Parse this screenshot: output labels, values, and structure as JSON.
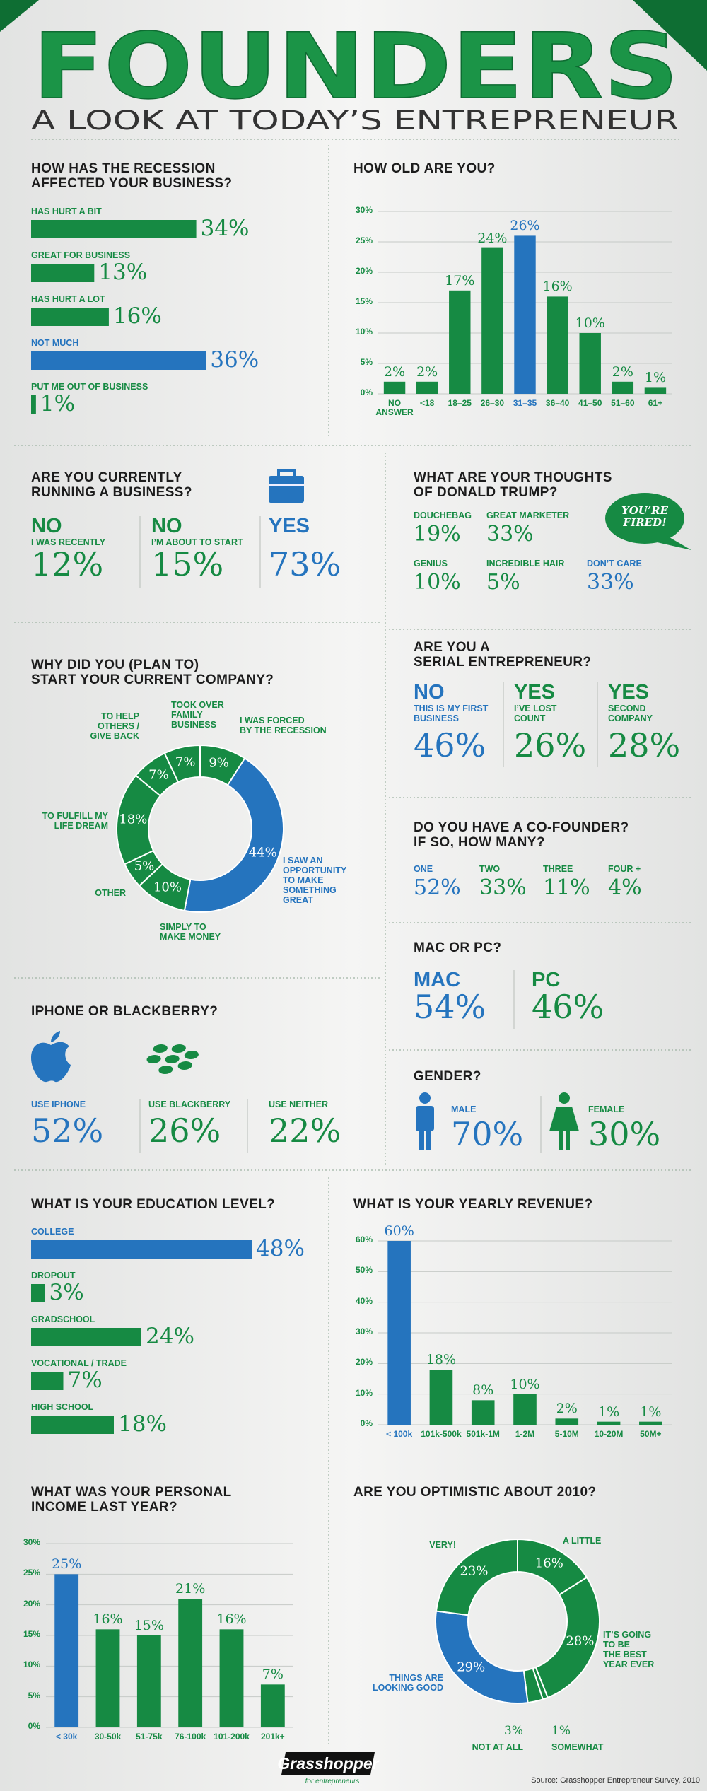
{
  "header": {
    "title": "FOUNDERS",
    "subtitle": "A LOOK AT TODAY’S ENTREPRENEUR"
  },
  "chart_data": [
    {
      "type": "hbar",
      "title": "HOW HAS THE RECESSION\nAFFECTED YOUR BUSINESS?",
      "categories": [
        "HAS HURT A BIT",
        "GREAT FOR BUSINESS",
        "HAS HURT A LOT",
        "NOT MUCH",
        "PUT ME OUT OF BUSINESS"
      ],
      "values": [
        34,
        13,
        16,
        36,
        1
      ],
      "value_labels": [
        "34%",
        "13%",
        "16%",
        "36%",
        "1%"
      ],
      "colors": [
        "#168a43",
        "#168a43",
        "#168a43",
        "#2574be",
        "#168a43"
      ]
    },
    {
      "type": "bar",
      "title": "HOW OLD ARE YOU?",
      "categories": [
        "NO\nANSWER",
        "<18",
        "18–25",
        "26–30",
        "31–35",
        "36–40",
        "41–50",
        "51–60",
        "61+"
      ],
      "values": [
        2,
        2,
        17,
        24,
        26,
        16,
        10,
        2,
        1
      ],
      "value_labels": [
        "2%",
        "2%",
        "17%",
        "24%",
        "26%",
        "16%",
        "10%",
        "2%",
        "1%"
      ],
      "colors": [
        "#168a43",
        "#168a43",
        "#168a43",
        "#168a43",
        "#2574be",
        "#168a43",
        "#168a43",
        "#168a43",
        "#168a43"
      ],
      "ylim": [
        0,
        30
      ],
      "yticks": [
        {
          "value": 0,
          "label": "0%"
        },
        {
          "value": 5,
          "label": "5%"
        },
        {
          "value": 10,
          "label": "10%"
        },
        {
          "value": 15,
          "label": "15%"
        },
        {
          "value": 20,
          "label": "20%"
        },
        {
          "value": 25,
          "label": "25%"
        },
        {
          "value": 30,
          "label": "30%"
        }
      ],
      "grid": true
    },
    {
      "type": "donut",
      "title": "WHY DID YOU (PLAN TO)\nSTART YOUR CURRENT COMPANY?",
      "categories": [
        "I WAS FORCED\nBY THE RECESSION",
        "I SAW AN\nOPPORTUNITY\nTO MAKE\nSOMETHING\nGREAT",
        "SIMPLY TO\nMAKE MONEY",
        "OTHER",
        "TO FULFILL MY\nLIFE DREAM",
        "TO HELP\nOTHERS /\nGIVE BACK",
        "TOOK OVER\nFAMILY\nBUSINESS"
      ],
      "values": [
        9,
        44,
        10,
        5,
        18,
        7,
        7
      ],
      "value_labels": [
        "9%",
        "44%",
        "10%",
        "5%",
        "18%",
        "7%",
        "7%"
      ],
      "colors": [
        "#168a43",
        "#2574be",
        "#168a43",
        "#168a43",
        "#168a43",
        "#168a43",
        "#168a43"
      ]
    },
    {
      "type": "hbar",
      "title": "WHAT IS YOUR EDUCATION LEVEL?",
      "categories": [
        "COLLEGE",
        "DROPOUT",
        "GRADSCHOOL",
        "VOCATIONAL / TRADE",
        "HIGH SCHOOL"
      ],
      "values": [
        48,
        3,
        24,
        7,
        18
      ],
      "value_labels": [
        "48%",
        "3%",
        "24%",
        "7%",
        "18%"
      ],
      "colors": [
        "#2574be",
        "#168a43",
        "#168a43",
        "#168a43",
        "#168a43"
      ]
    },
    {
      "type": "bar",
      "title": "WHAT IS YOUR YEARLY REVENUE?",
      "categories": [
        "< 100k",
        "101k-500k",
        "501k-1M",
        "1-2M",
        "5-10M",
        "10-20M",
        "50M+"
      ],
      "values": [
        60,
        18,
        8,
        10,
        2,
        1,
        1
      ],
      "value_labels": [
        "60%",
        "18%",
        "8%",
        "10%",
        "2%",
        "1%",
        "1%"
      ],
      "colors": [
        "#2574be",
        "#168a43",
        "#168a43",
        "#168a43",
        "#168a43",
        "#168a43",
        "#168a43"
      ],
      "ylim": [
        0,
        60
      ],
      "yticks": [
        {
          "value": 0,
          "label": "0%"
        },
        {
          "value": 10,
          "label": "10%"
        },
        {
          "value": 20,
          "label": "20%"
        },
        {
          "value": 30,
          "label": "30%"
        },
        {
          "value": 40,
          "label": "40%"
        },
        {
          "value": 50,
          "label": "50%"
        },
        {
          "value": 60,
          "label": "60%"
        }
      ],
      "grid": true
    },
    {
      "type": "bar",
      "title": "WHAT WAS YOUR PERSONAL\nINCOME LAST YEAR?",
      "categories": [
        "< 30k",
        "30-50k",
        "51-75k",
        "76-100k",
        "101-200k",
        "201k+"
      ],
      "values": [
        25,
        16,
        15,
        21,
        16,
        7
      ],
      "value_labels": [
        "25%",
        "16%",
        "15%",
        "21%",
        "16%",
        "7%"
      ],
      "colors": [
        "#2574be",
        "#168a43",
        "#168a43",
        "#168a43",
        "#168a43",
        "#168a43"
      ],
      "ylim": [
        0,
        30
      ],
      "yticks": [
        {
          "value": 0,
          "label": "0%"
        },
        {
          "value": 5,
          "label": "5%"
        },
        {
          "value": 10,
          "label": "10%"
        },
        {
          "value": 15,
          "label": "15%"
        },
        {
          "value": 20,
          "label": "20%"
        },
        {
          "value": 25,
          "label": "25%"
        },
        {
          "value": 30,
          "label": "30%"
        }
      ],
      "grid": true
    },
    {
      "type": "donut",
      "title": "ARE YOU OPTIMISTIC ABOUT 2010?",
      "categories": [
        "A LITTLE",
        "IT’S GOING\nTO BE\nTHE BEST\nYEAR EVER",
        "SOMEWHAT",
        "NOT AT ALL",
        "THINGS ARE\nLOOKING GOOD",
        "VERY!"
      ],
      "values": [
        16,
        28,
        1,
        3,
        29,
        23
      ],
      "value_labels": [
        "16%",
        "28%",
        "1%",
        "3%",
        "29%",
        "23%"
      ],
      "colors": [
        "#168a43",
        "#168a43",
        "#168a43",
        "#168a43",
        "#2574be",
        "#168a43"
      ]
    }
  ],
  "panels": {
    "running": {
      "title": "ARE YOU CURRENTLY\nRUNNING A BUSINESS?",
      "items": [
        {
          "head": "NO",
          "sub": "I WAS RECENTLY",
          "value": "12%",
          "color": "#168a43"
        },
        {
          "head": "NO",
          "sub": "I’M ABOUT TO START",
          "value": "15%",
          "color": "#168a43"
        },
        {
          "head": "YES",
          "value": "73%",
          "color": "#2574be"
        }
      ]
    },
    "trump": {
      "title": "WHAT ARE YOUR THOUGHTS\nOF DONALD TRUMP?",
      "bubble": "YOU’RE\nFIRED!",
      "items": [
        {
          "label": "DOUCHEBAG",
          "value": "19%",
          "color": "#168a43"
        },
        {
          "label": "GREAT MARKETER",
          "value": "33%",
          "color": "#168a43"
        },
        {
          "label": "GENIUS",
          "value": "10%",
          "color": "#168a43"
        },
        {
          "label": "INCREDIBLE HAIR",
          "value": "5%",
          "color": "#168a43"
        },
        {
          "label": "DON’T CARE",
          "value": "33%",
          "color": "#2574be"
        }
      ]
    },
    "serial": {
      "title": "ARE YOU A\nSERIAL ENTREPRENEUR?",
      "items": [
        {
          "head": "NO",
          "sub": "THIS IS MY FIRST\nBUSINESS",
          "value": "46%",
          "color": "#2574be"
        },
        {
          "head": "YES",
          "sub": "I’VE LOST\nCOUNT",
          "value": "26%",
          "color": "#168a43"
        },
        {
          "head": "YES",
          "sub": "SECOND\nCOMPANY",
          "value": "28%",
          "color": "#168a43"
        }
      ]
    },
    "cofounder": {
      "title": "DO YOU HAVE A CO-FOUNDER?\nIF SO, HOW MANY?",
      "items": [
        {
          "label": "ONE",
          "value": "52%",
          "color": "#2574be"
        },
        {
          "label": "TWO",
          "value": "33%",
          "color": "#168a43"
        },
        {
          "label": "THREE",
          "value": "11%",
          "color": "#168a43"
        },
        {
          "label": "FOUR +",
          "value": "4%",
          "color": "#168a43"
        }
      ]
    },
    "mac": {
      "title": "MAC OR PC?",
      "items": [
        {
          "head": "MAC",
          "value": "54%",
          "color": "#2574be"
        },
        {
          "head": "PC",
          "value": "46%",
          "color": "#168a43"
        }
      ]
    },
    "phone": {
      "title": "IPHONE OR BLACKBERRY?",
      "items": [
        {
          "label": "USE IPHONE",
          "value": "52%",
          "color": "#2574be"
        },
        {
          "label": "USE BLACKBERRY",
          "value": "26%",
          "color": "#168a43"
        },
        {
          "label": "USE NEITHER",
          "value": "22%",
          "color": "#168a43"
        }
      ]
    },
    "gender": {
      "title": "GENDER?",
      "items": [
        {
          "label": "MALE",
          "value": "70%",
          "color": "#2574be"
        },
        {
          "label": "FEMALE",
          "value": "30%",
          "color": "#168a43"
        }
      ]
    }
  },
  "footer": {
    "logo": "Grasshopper",
    "tagline": "for entrepreneurs",
    "source": "Source: Grasshopper Entrepreneur Survey, 2010"
  }
}
